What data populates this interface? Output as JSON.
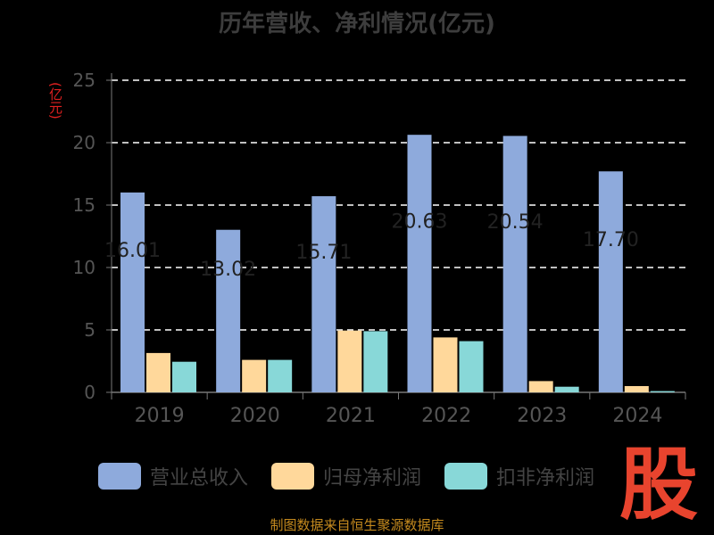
{
  "chart_data": {
    "type": "bar",
    "title": "历年营收、净利情况(亿元)",
    "ylabel": "(亿元)",
    "ylim": [
      0,
      25
    ],
    "yticks": [
      0,
      5,
      10,
      15,
      20,
      25
    ],
    "grid": true,
    "legend_position": "bottom",
    "categories": [
      "2019",
      "2020",
      "2021",
      "2022",
      "2023",
      "2024"
    ],
    "series": [
      {
        "name": "营业总收入",
        "color": "#8eaadc",
        "values": [
          16.01,
          13.02,
          15.71,
          20.63,
          20.54,
          17.7
        ],
        "labels": [
          "16.01",
          "13.02",
          "15.71",
          "20.63",
          "20.54",
          "17.70"
        ]
      },
      {
        "name": "归母净利润",
        "color": "#ffd89b",
        "values": [
          3.15,
          2.6,
          4.95,
          4.4,
          0.9,
          0.5
        ]
      },
      {
        "name": "扣非净利润",
        "color": "#88d8d8",
        "values": [
          2.45,
          2.6,
          4.9,
          4.1,
          0.45,
          0.1
        ]
      }
    ]
  },
  "source": "制图数据来自恒生聚源数据库",
  "watermark": "股"
}
